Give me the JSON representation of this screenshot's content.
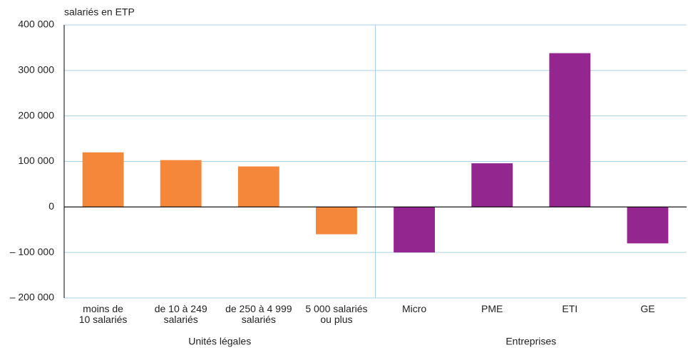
{
  "chart_data": {
    "type": "bar",
    "y_label": "salariés en ETP",
    "categories": [
      "moins de\n10 salariés",
      "de 10 à 249\nsalariés",
      "de 250 à 4 999\nsalariés",
      "5 000 salariés\nou plus",
      "Micro",
      "PME",
      "ETI",
      "GE"
    ],
    "series": [
      {
        "name": "Unités légales",
        "color": "#f5873a",
        "values": [
          120000,
          103000,
          89000,
          -60000,
          null,
          null,
          null,
          null
        ]
      },
      {
        "name": "Entreprises",
        "color": "#93278f",
        "values": [
          null,
          null,
          null,
          null,
          -100000,
          96000,
          338000,
          -80000
        ]
      }
    ],
    "ylim": [
      -200000,
      400000
    ],
    "yticks": [
      {
        "value": -200000,
        "label": "– 200 000"
      },
      {
        "value": -100000,
        "label": "– 100 000"
      },
      0,
      {
        "value": 100000,
        "label": "100 000"
      },
      {
        "value": 200000,
        "label": "200 000"
      },
      {
        "value": 300000,
        "label": "300 000"
      },
      {
        "value": 400000,
        "label": "400 000"
      }
    ],
    "grid": true
  }
}
